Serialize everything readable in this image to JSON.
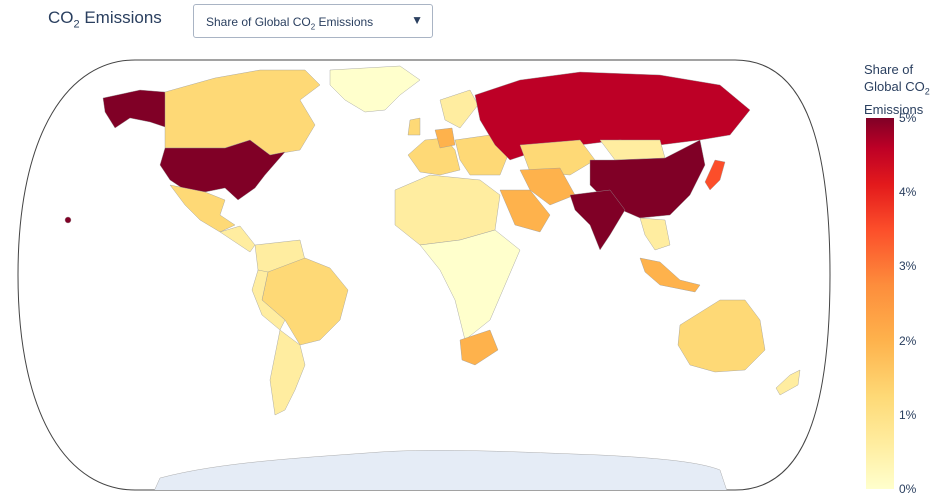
{
  "header": {
    "title_main": "CO",
    "title_sub": "2",
    "title_rest": " Emissions"
  },
  "metric_select": {
    "text_main": "Share of Global CO",
    "text_sub": "2",
    "text_rest": " Emissions",
    "caret_icon": "triangle-down-icon"
  },
  "colorbar": {
    "title_line1": "Share of",
    "title_line2_main": "Global CO",
    "title_line2_sub": "2",
    "title_line3": "Emissions",
    "ticks": [
      "5%",
      "4%",
      "3%",
      "2%",
      "1%",
      "0%"
    ],
    "tick_values": [
      5,
      4,
      3,
      2,
      1,
      0
    ],
    "range": [
      0,
      5
    ],
    "colors": [
      "#ffffcc",
      "#ffeda0",
      "#fed976",
      "#feb24c",
      "#fd8d3c",
      "#fc4e2a",
      "#e31a1c",
      "#bd0026",
      "#800026"
    ]
  },
  "map": {
    "projection": "natural earth",
    "ocean_color": "#ffffff",
    "no_data_color": "#e5ecf6",
    "border_color": "#444444"
  }
}
